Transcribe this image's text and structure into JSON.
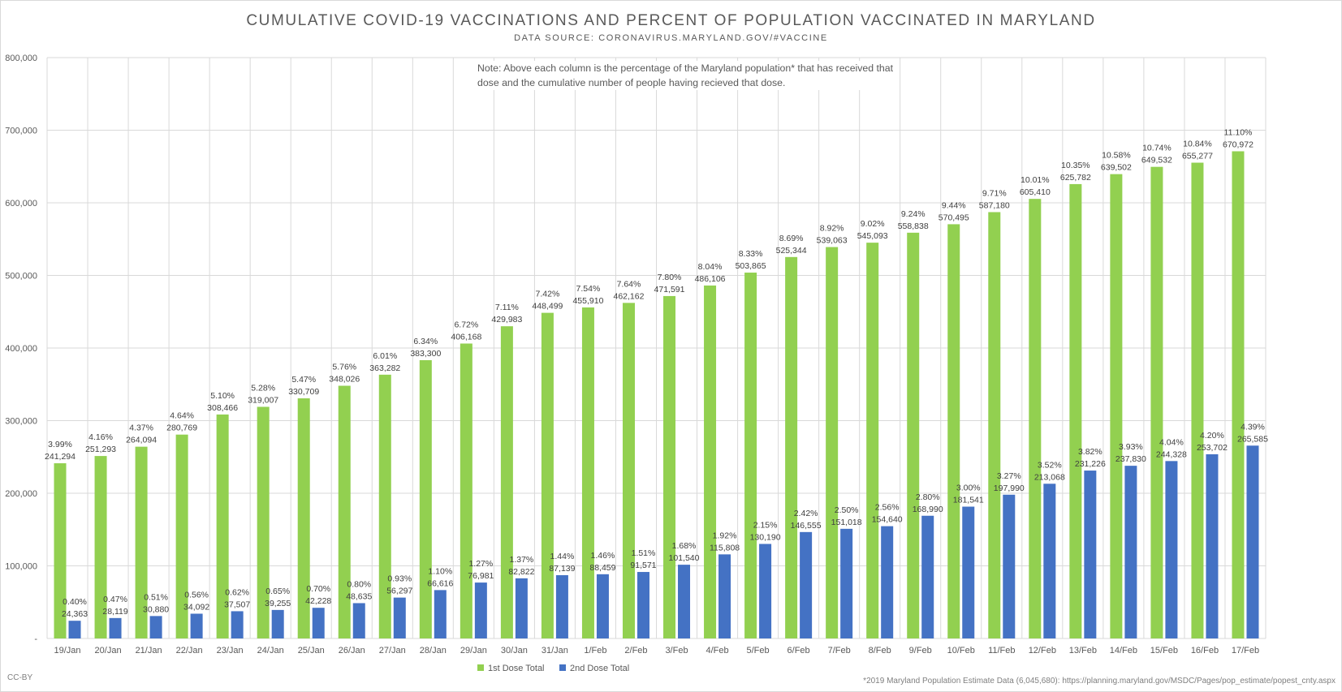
{
  "title": "CUMULATIVE COVID-19 VACCINATIONS AND PERCENT OF POPULATION VACCINATED IN MARYLAND",
  "subtitle": "DATA SOURCE: CORONAVIRUS.MARYLAND.GOV/#VACCINE",
  "note": "Note: Above each column is the percentage of the Maryland population* that has received that dose and the cumulative number of people having recieved that dose.",
  "footnote": "*2019 Maryland Population Estimate Data (6,045,680): https://planning.maryland.gov/MSDC/Pages/pop_estimate/popest_cnty.aspx",
  "license": "CC-BY",
  "chart_data": {
    "type": "bar",
    "title": "CUMULATIVE COVID-19 VACCINATIONS AND PERCENT OF POPULATION VACCINATED IN MARYLAND",
    "ylim": [
      0,
      800000
    ],
    "ytick_labels": [
      "-",
      "100,000",
      "200,000",
      "300,000",
      "400,000",
      "500,000",
      "600,000",
      "700,000",
      "800,000"
    ],
    "grid": true,
    "legend_position": "bottom",
    "categories": [
      "19/Jan",
      "20/Jan",
      "21/Jan",
      "22/Jan",
      "23/Jan",
      "24/Jan",
      "25/Jan",
      "26/Jan",
      "27/Jan",
      "28/Jan",
      "29/Jan",
      "30/Jan",
      "31/Jan",
      "1/Feb",
      "2/Feb",
      "3/Feb",
      "4/Feb",
      "5/Feb",
      "6/Feb",
      "7/Feb",
      "8/Feb",
      "9/Feb",
      "10/Feb",
      "11/Feb",
      "12/Feb",
      "13/Feb",
      "14/Feb",
      "15/Feb",
      "16/Feb",
      "17/Feb"
    ],
    "series": [
      {
        "name": "1st Dose Total",
        "color": "#92d050",
        "values": [
          241294,
          251293,
          264094,
          280769,
          308466,
          319007,
          330709,
          348026,
          363282,
          383300,
          406168,
          429983,
          448499,
          455910,
          462162,
          471591,
          486106,
          503865,
          525344,
          539063,
          545093,
          558838,
          570495,
          587180,
          605410,
          625782,
          639502,
          649532,
          655277,
          670972
        ],
        "percent_labels": [
          "3.99%",
          "4.16%",
          "4.37%",
          "4.64%",
          "5.10%",
          "5.28%",
          "5.47%",
          "5.76%",
          "6.01%",
          "6.34%",
          "6.72%",
          "7.11%",
          "7.42%",
          "7.54%",
          "7.64%",
          "7.80%",
          "8.04%",
          "8.33%",
          "8.69%",
          "8.92%",
          "9.02%",
          "9.24%",
          "9.44%",
          "9.71%",
          "10.01%",
          "10.35%",
          "10.58%",
          "10.74%",
          "10.84%",
          "11.10%"
        ],
        "value_labels": [
          "241,294",
          "251,293",
          "264,094",
          "280,769",
          "308,466",
          "319,007",
          "330,709",
          "348,026",
          "363,282",
          "383,300",
          "406,168",
          "429,983",
          "448,499",
          "455,910",
          "462,162",
          "471,591",
          "486,106",
          "503,865",
          "525,344",
          "539,063",
          "545,093",
          "558,838",
          "570,495",
          "587,180",
          "605,410",
          "625,782",
          "639,502",
          "649,532",
          "655,277",
          "670,972"
        ]
      },
      {
        "name": "2nd Dose Total",
        "color": "#4472c4",
        "values": [
          24363,
          28119,
          30880,
          34092,
          37507,
          39255,
          42228,
          48635,
          56297,
          66616,
          76981,
          82822,
          87139,
          88459,
          91571,
          101540,
          115808,
          130190,
          146555,
          151018,
          154640,
          168990,
          181541,
          197990,
          213068,
          231226,
          237830,
          244328,
          253702,
          265585
        ],
        "percent_labels": [
          "0.40%",
          "0.47%",
          "0.51%",
          "0.56%",
          "0.62%",
          "0.65%",
          "0.70%",
          "0.80%",
          "0.93%",
          "1.10%",
          "1.27%",
          "1.37%",
          "1.44%",
          "1.46%",
          "1.51%",
          "1.68%",
          "1.92%",
          "2.15%",
          "2.42%",
          "2.50%",
          "2.56%",
          "2.80%",
          "3.00%",
          "3.27%",
          "3.52%",
          "3.82%",
          "3.93%",
          "4.04%",
          "4.20%",
          "4.39%"
        ],
        "value_labels": [
          "24,363",
          "28,119",
          "30,880",
          "34,092",
          "37,507",
          "39,255",
          "42,228",
          "48,635",
          "56,297",
          "66,616",
          "76,981",
          "82,822",
          "87,139",
          "88,459",
          "91,571",
          "101,540",
          "115,808",
          "130,190",
          "146,555",
          "151,018",
          "154,640",
          "168,990",
          "181,541",
          "197,990",
          "213,068",
          "231,226",
          "237,830",
          "244,328",
          "253,702",
          "265,585"
        ]
      }
    ]
  }
}
